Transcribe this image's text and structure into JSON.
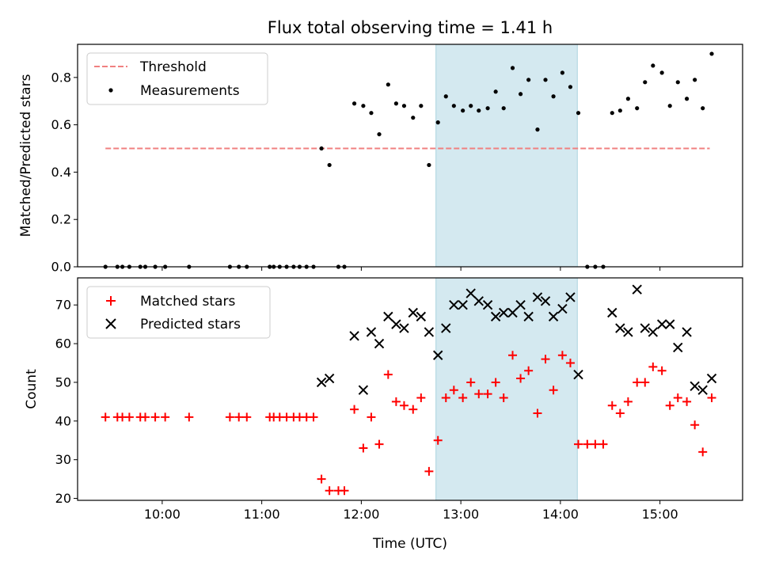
{
  "chart_data": {
    "type": "scatter",
    "title": "Flux total observing time = 1.41 h",
    "xlabel": "Time (UTC)",
    "x_tick_labels": [
      "10:00",
      "11:00",
      "12:00",
      "13:00",
      "14:00",
      "15:00"
    ],
    "x_tick_hours": [
      10,
      11,
      12,
      13,
      14,
      15
    ],
    "xlim_hours": [
      9.15,
      15.83
    ],
    "highlight_span_hours": [
      12.75,
      14.17
    ],
    "highlight_color": "#d4e9f0",
    "panels": [
      {
        "ylabel": "Matched/Predicted stars",
        "ylim": [
          0,
          0.94
        ],
        "y_ticks": [
          0.0,
          0.2,
          0.4,
          0.6,
          0.8
        ],
        "y_tick_labels": [
          "0.0",
          "0.2",
          "0.4",
          "0.6",
          "0.8"
        ],
        "legend_position": "upper-left",
        "threshold": {
          "name": "Threshold",
          "value": 0.5,
          "x_range": [
            9.43,
            15.5
          ],
          "color": "#f08080"
        },
        "series": [
          {
            "name": "Measurements",
            "marker": "dot",
            "color": "#000000",
            "x": [
              9.43,
              9.55,
              9.6,
              9.67,
              9.78,
              9.83,
              9.93,
              10.03,
              10.27,
              10.68,
              10.77,
              10.85,
              11.08,
              11.12,
              11.18,
              11.25,
              11.32,
              11.38,
              11.45,
              11.52,
              11.6,
              11.68,
              11.77,
              11.83,
              11.93,
              12.02,
              12.1,
              12.18,
              12.27,
              12.35,
              12.43,
              12.52,
              12.6,
              12.68,
              12.77,
              12.85,
              12.93,
              13.02,
              13.1,
              13.18,
              13.27,
              13.35,
              13.43,
              13.52,
              13.6,
              13.68,
              13.77,
              13.85,
              13.93,
              14.02,
              14.1,
              14.18,
              14.27,
              14.35,
              14.43,
              14.52,
              14.6,
              14.68,
              14.77,
              14.85,
              14.93,
              15.02,
              15.1,
              15.18,
              15.27,
              15.35,
              15.43,
              15.52
            ],
            "y": [
              0,
              0,
              0,
              0,
              0,
              0,
              0,
              0,
              0,
              0,
              0,
              0,
              0,
              0,
              0,
              0,
              0,
              0,
              0,
              0,
              0.5,
              0.43,
              0,
              0,
              0.69,
              0.68,
              0.65,
              0.56,
              0.77,
              0.69,
              0.68,
              0.63,
              0.68,
              0.43,
              0.61,
              0.72,
              0.68,
              0.66,
              0.68,
              0.66,
              0.67,
              0.74,
              0.67,
              0.84,
              0.73,
              0.79,
              0.58,
              0.79,
              0.72,
              0.82,
              0.76,
              0.65,
              0,
              0,
              0,
              0.65,
              0.66,
              0.71,
              0.67,
              0.78,
              0.85,
              0.82,
              0.68,
              0.78,
              0.71,
              0.79,
              0.67,
              0.9
            ]
          }
        ]
      },
      {
        "ylabel": "Count",
        "ylim": [
          19.5,
          77
        ],
        "y_ticks": [
          20,
          30,
          40,
          50,
          60,
          70
        ],
        "y_tick_labels": [
          "20",
          "30",
          "40",
          "50",
          "60",
          "70"
        ],
        "legend_position": "upper-left",
        "series": [
          {
            "name": "Matched stars",
            "marker": "plus",
            "color": "#ff0000",
            "x": [
              9.43,
              9.55,
              9.6,
              9.67,
              9.78,
              9.83,
              9.93,
              10.03,
              10.27,
              10.68,
              10.77,
              10.85,
              11.08,
              11.12,
              11.18,
              11.25,
              11.32,
              11.38,
              11.45,
              11.52,
              11.6,
              11.68,
              11.77,
              11.83,
              11.93,
              12.02,
              12.1,
              12.18,
              12.27,
              12.35,
              12.43,
              12.52,
              12.6,
              12.68,
              12.77,
              12.85,
              12.93,
              13.02,
              13.1,
              13.18,
              13.27,
              13.35,
              13.43,
              13.52,
              13.6,
              13.68,
              13.77,
              13.85,
              13.93,
              14.02,
              14.1,
              14.18,
              14.27,
              14.35,
              14.43,
              14.52,
              14.6,
              14.68,
              14.77,
              14.85,
              14.93,
              15.02,
              15.1,
              15.18,
              15.27,
              15.35,
              15.43,
              15.52
            ],
            "y": [
              41,
              41,
              41,
              41,
              41,
              41,
              41,
              41,
              41,
              41,
              41,
              41,
              41,
              41,
              41,
              41,
              41,
              41,
              41,
              41,
              25,
              22,
              22,
              22,
              43,
              33,
              41,
              34,
              52,
              45,
              44,
              43,
              46,
              27,
              35,
              46,
              48,
              46,
              50,
              47,
              47,
              50,
              46,
              57,
              51,
              53,
              42,
              56,
              48,
              57,
              55,
              34,
              34,
              34,
              34,
              44,
              42,
              45,
              50,
              50,
              54,
              53,
              44,
              46,
              45,
              39,
              32,
              46
            ]
          },
          {
            "name": "Predicted stars",
            "marker": "x",
            "color": "#000000",
            "x": [
              11.6,
              11.68,
              11.93,
              12.02,
              12.1,
              12.18,
              12.27,
              12.35,
              12.43,
              12.52,
              12.6,
              12.68,
              12.77,
              12.85,
              12.93,
              13.02,
              13.1,
              13.18,
              13.27,
              13.35,
              13.43,
              13.52,
              13.6,
              13.68,
              13.77,
              13.85,
              13.93,
              14.02,
              14.1,
              14.18,
              14.52,
              14.6,
              14.68,
              14.77,
              14.85,
              14.93,
              15.02,
              15.1,
              15.18,
              15.27,
              15.35,
              15.43,
              15.52
            ],
            "y": [
              50,
              51,
              62,
              48,
              63,
              60,
              67,
              65,
              64,
              68,
              67,
              63,
              57,
              64,
              70,
              70,
              73,
              71,
              70,
              67,
              68,
              68,
              70,
              67,
              72,
              71,
              67,
              69,
              72,
              52,
              68,
              64,
              63,
              74,
              64,
              63,
              65,
              65,
              59,
              63,
              49,
              48,
              51
            ]
          }
        ]
      }
    ]
  }
}
